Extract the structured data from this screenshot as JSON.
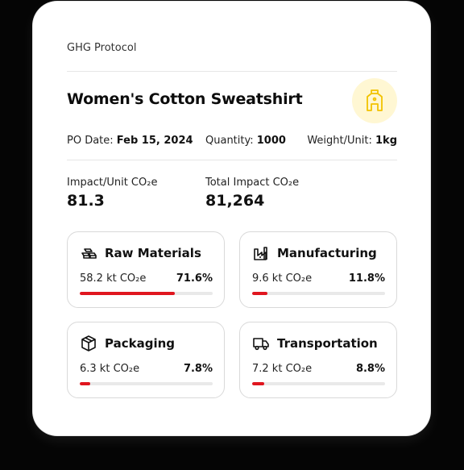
{
  "protocol_label": "GHG Protocol",
  "product": {
    "title": "Women's Cotton Sweatshirt",
    "icon": "sweatshirt-tag-icon",
    "accent_color": "#fff7d3"
  },
  "meta": {
    "po_date_label": "PO Date:",
    "po_date_value": "Feb 15, 2024",
    "quantity_label": "Quantity:",
    "quantity_value": "1000",
    "weight_label": "Weight/Unit:",
    "weight_value": "1kg"
  },
  "impact": {
    "per_unit_label": "Impact/Unit CO₂e",
    "per_unit_value": "81.3",
    "total_label": "Total Impact CO₂e",
    "total_value": "81,264"
  },
  "categories": [
    {
      "name": "Raw Materials",
      "icon": "raw-materials-icon",
      "value": "58.2 kt CO₂e",
      "percent_label": "71.6%",
      "fraction": 0.716
    },
    {
      "name": "Manufacturing",
      "icon": "factory-icon",
      "value": "9.6 kt CO₂e",
      "percent_label": "11.8%",
      "fraction": 0.118
    },
    {
      "name": "Packaging",
      "icon": "package-icon",
      "value": "6.3 kt CO₂e",
      "percent_label": "7.8%",
      "fraction": 0.078
    },
    {
      "name": "Transportation",
      "icon": "truck-icon",
      "value": "7.2 kt CO₂e",
      "percent_label": "8.8%",
      "fraction": 0.088
    }
  ],
  "colors": {
    "bar_fill": "#e0161f",
    "bar_track": "#e9e9e9"
  }
}
